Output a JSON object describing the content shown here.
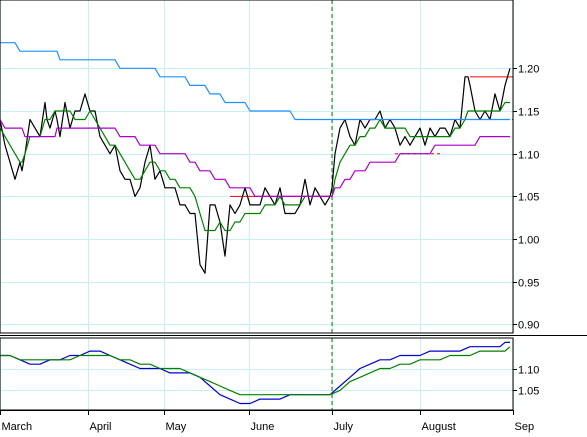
{
  "chart_data": [
    {
      "type": "line",
      "title": "",
      "xlabel": "",
      "ylabel": "",
      "x": [
        0,
        5,
        10,
        15,
        20,
        22,
        25,
        30,
        35,
        40,
        45,
        47,
        50,
        55,
        57,
        60,
        65,
        70,
        75,
        80,
        85,
        90,
        95,
        100,
        105,
        110,
        115,
        120,
        125,
        130,
        135,
        140,
        145,
        150,
        155,
        160,
        165,
        170,
        175,
        180,
        185,
        190,
        195,
        200,
        205,
        210,
        215,
        220,
        225,
        230,
        235,
        240,
        245,
        250,
        255,
        260,
        265,
        270,
        275,
        280,
        285,
        290,
        295,
        300,
        305,
        310,
        315,
        320,
        325,
        330,
        332,
        335,
        340,
        345,
        350,
        355,
        360,
        365,
        370,
        375,
        380,
        385,
        390,
        395,
        400,
        405,
        410,
        415,
        420,
        425,
        430,
        435,
        440,
        445,
        450,
        455,
        460,
        465,
        468,
        470,
        475,
        480,
        485,
        490,
        495,
        500,
        505,
        510
      ],
      "xlim": [
        0,
        513
      ],
      "ylim": [
        0.89,
        1.28
      ],
      "yticks": [
        "1.20",
        "1.15",
        "1.10",
        "1.05",
        "1.00",
        "0.95",
        "0.90"
      ],
      "xtick_labels": [
        "March",
        "April",
        "May",
        "June",
        "July",
        "August",
        "Sep"
      ],
      "xtick_positions": [
        0,
        88,
        164,
        249,
        332,
        420,
        513
      ],
      "series": [
        {
          "key": "price",
          "color": "#000000",
          "values": [
            1.14,
            1.11,
            1.09,
            1.07,
            1.09,
            1.08,
            1.1,
            1.14,
            1.13,
            1.12,
            1.16,
            1.14,
            1.13,
            1.15,
            1.14,
            1.12,
            1.16,
            1.13,
            1.15,
            1.15,
            1.17,
            1.15,
            1.15,
            1.12,
            1.11,
            1.1,
            1.11,
            1.08,
            1.07,
            1.07,
            1.05,
            1.06,
            1.09,
            1.11,
            1.07,
            1.08,
            1.06,
            1.06,
            1.06,
            1.04,
            1.04,
            1.03,
            1.03,
            0.97,
            0.96,
            1.04,
            1.04,
            1.02,
            0.98,
            1.04,
            1.03,
            1.04,
            1.06,
            1.04,
            1.04,
            1.04,
            1.06,
            1.05,
            1.04,
            1.06,
            1.03,
            1.03,
            1.03,
            1.04,
            1.07,
            1.04,
            1.06,
            1.05,
            1.04,
            1.05,
            1.06,
            1.1,
            1.13,
            1.14,
            1.12,
            1.11,
            1.14,
            1.13,
            1.14,
            1.14,
            1.15,
            1.13,
            1.14,
            1.13,
            1.11,
            1.12,
            1.11,
            1.12,
            1.13,
            1.11,
            1.13,
            1.12,
            1.13,
            1.13,
            1.12,
            1.14,
            1.13,
            1.19,
            1.19,
            1.18,
            1.15,
            1.14,
            1.15,
            1.14,
            1.17,
            1.15,
            1.18,
            1.2
          ]
        },
        {
          "key": "ma-short",
          "color": "#008000",
          "values": [
            1.13,
            1.12,
            1.11,
            1.1,
            1.09,
            1.09,
            1.1,
            1.12,
            1.12,
            1.12,
            1.14,
            1.14,
            1.14,
            1.15,
            1.15,
            1.15,
            1.15,
            1.15,
            1.14,
            1.14,
            1.14,
            1.15,
            1.14,
            1.13,
            1.12,
            1.11,
            1.11,
            1.1,
            1.09,
            1.08,
            1.07,
            1.07,
            1.08,
            1.09,
            1.09,
            1.08,
            1.08,
            1.07,
            1.07,
            1.06,
            1.06,
            1.06,
            1.05,
            1.03,
            1.01,
            1.01,
            1.01,
            1.02,
            1.01,
            1.01,
            1.02,
            1.02,
            1.03,
            1.03,
            1.03,
            1.03,
            1.04,
            1.04,
            1.04,
            1.05,
            1.04,
            1.04,
            1.04,
            1.04,
            1.05,
            1.05,
            1.05,
            1.05,
            1.05,
            1.05,
            1.05,
            1.07,
            1.09,
            1.1,
            1.11,
            1.11,
            1.12,
            1.12,
            1.13,
            1.13,
            1.14,
            1.13,
            1.13,
            1.13,
            1.13,
            1.13,
            1.12,
            1.12,
            1.12,
            1.12,
            1.12,
            1.12,
            1.12,
            1.12,
            1.12,
            1.13,
            1.13,
            1.14,
            1.15,
            1.15,
            1.15,
            1.15,
            1.15,
            1.15,
            1.15,
            1.15,
            1.16,
            1.16
          ]
        },
        {
          "key": "ma-medium",
          "color": "#aa00cc",
          "values": [
            1.14,
            1.13,
            1.13,
            1.13,
            1.13,
            1.13,
            1.12,
            1.12,
            1.12,
            1.12,
            1.12,
            1.12,
            1.12,
            1.12,
            1.13,
            1.13,
            1.13,
            1.13,
            1.13,
            1.13,
            1.13,
            1.13,
            1.13,
            1.13,
            1.13,
            1.13,
            1.13,
            1.12,
            1.12,
            1.12,
            1.12,
            1.11,
            1.11,
            1.11,
            1.11,
            1.1,
            1.1,
            1.1,
            1.1,
            1.1,
            1.1,
            1.09,
            1.09,
            1.08,
            1.08,
            1.08,
            1.07,
            1.07,
            1.07,
            1.06,
            1.06,
            1.06,
            1.06,
            1.06,
            1.05,
            1.05,
            1.05,
            1.05,
            1.05,
            1.05,
            1.05,
            1.05,
            1.05,
            1.05,
            1.05,
            1.05,
            1.05,
            1.05,
            1.05,
            1.05,
            1.05,
            1.06,
            1.06,
            1.07,
            1.07,
            1.08,
            1.08,
            1.08,
            1.09,
            1.09,
            1.09,
            1.09,
            1.09,
            1.09,
            1.1,
            1.1,
            1.1,
            1.1,
            1.1,
            1.1,
            1.1,
            1.11,
            1.11,
            1.11,
            1.11,
            1.11,
            1.11,
            1.11,
            1.11,
            1.11,
            1.11,
            1.12,
            1.12,
            1.12,
            1.12,
            1.12,
            1.12,
            1.12
          ]
        },
        {
          "key": "ma-long",
          "color": "#1e90ff",
          "values": [
            1.23,
            1.23,
            1.23,
            1.23,
            1.22,
            1.22,
            1.22,
            1.22,
            1.22,
            1.22,
            1.22,
            1.22,
            1.22,
            1.22,
            1.22,
            1.21,
            1.21,
            1.21,
            1.21,
            1.21,
            1.21,
            1.21,
            1.21,
            1.21,
            1.21,
            1.21,
            1.21,
            1.2,
            1.2,
            1.2,
            1.2,
            1.2,
            1.2,
            1.2,
            1.2,
            1.19,
            1.19,
            1.19,
            1.19,
            1.19,
            1.19,
            1.18,
            1.18,
            1.18,
            1.18,
            1.17,
            1.17,
            1.17,
            1.16,
            1.16,
            1.16,
            1.16,
            1.16,
            1.15,
            1.15,
            1.15,
            1.15,
            1.15,
            1.15,
            1.15,
            1.15,
            1.15,
            1.14,
            1.14,
            1.14,
            1.14,
            1.14,
            1.14,
            1.14,
            1.14,
            1.14,
            1.14,
            1.14,
            1.14,
            1.14,
            1.14,
            1.14,
            1.14,
            1.14,
            1.14,
            1.14,
            1.14,
            1.14,
            1.14,
            1.14,
            1.14,
            1.14,
            1.14,
            1.14,
            1.14,
            1.14,
            1.14,
            1.14,
            1.14,
            1.14,
            1.14,
            1.14,
            1.14,
            1.14,
            1.14,
            1.14,
            1.14,
            1.14,
            1.14,
            1.14,
            1.14,
            1.14,
            1.14
          ]
        }
      ],
      "annotations": [
        {
          "kind": "hline",
          "color": "#ff0000",
          "style": "solid",
          "x1": 230,
          "x2": 332,
          "y": 1.05
        },
        {
          "kind": "hline",
          "color": "#ff0000",
          "style": "solid",
          "x1": 470,
          "x2": 513,
          "y": 1.19
        },
        {
          "kind": "hline",
          "color": "#ff0000",
          "style": "dashed",
          "x1": 470,
          "x2": 513,
          "y": 1.14
        },
        {
          "kind": "hline",
          "color": "#ff0000",
          "style": "dashed",
          "x1": 395,
          "x2": 440,
          "y": 1.1
        },
        {
          "kind": "vline",
          "color": "#008000",
          "style": "dashed",
          "x": 332
        }
      ]
    },
    {
      "type": "line",
      "title": "",
      "xlabel": "",
      "ylabel": "",
      "x": [
        0,
        10,
        20,
        30,
        40,
        50,
        60,
        70,
        80,
        90,
        100,
        110,
        120,
        130,
        140,
        150,
        160,
        170,
        180,
        190,
        200,
        210,
        220,
        230,
        240,
        250,
        260,
        270,
        280,
        290,
        300,
        310,
        320,
        330,
        340,
        350,
        360,
        370,
        380,
        390,
        400,
        410,
        420,
        430,
        440,
        450,
        460,
        470,
        480,
        490,
        500,
        505,
        510
      ],
      "xlim": [
        0,
        513
      ],
      "ylim": [
        1.005,
        1.17
      ],
      "yticks": [
        "1.10",
        "1.05"
      ],
      "series": [
        {
          "key": "indicator-blue",
          "color": "#0000cc",
          "values": [
            1.13,
            1.13,
            1.12,
            1.11,
            1.11,
            1.12,
            1.12,
            1.13,
            1.13,
            1.14,
            1.14,
            1.13,
            1.12,
            1.11,
            1.1,
            1.1,
            1.1,
            1.09,
            1.09,
            1.09,
            1.08,
            1.06,
            1.04,
            1.03,
            1.02,
            1.02,
            1.03,
            1.03,
            1.03,
            1.04,
            1.04,
            1.04,
            1.04,
            1.04,
            1.06,
            1.08,
            1.1,
            1.11,
            1.12,
            1.12,
            1.13,
            1.13,
            1.13,
            1.14,
            1.14,
            1.14,
            1.14,
            1.15,
            1.15,
            1.15,
            1.15,
            1.16,
            1.16
          ]
        },
        {
          "key": "indicator-green",
          "color": "#008000",
          "values": [
            1.13,
            1.13,
            1.12,
            1.12,
            1.12,
            1.12,
            1.12,
            1.12,
            1.13,
            1.13,
            1.13,
            1.13,
            1.12,
            1.12,
            1.11,
            1.11,
            1.1,
            1.1,
            1.1,
            1.09,
            1.08,
            1.07,
            1.06,
            1.05,
            1.04,
            1.04,
            1.04,
            1.04,
            1.04,
            1.04,
            1.04,
            1.04,
            1.04,
            1.04,
            1.05,
            1.07,
            1.08,
            1.09,
            1.1,
            1.1,
            1.11,
            1.11,
            1.12,
            1.12,
            1.12,
            1.13,
            1.13,
            1.13,
            1.14,
            1.14,
            1.14,
            1.14,
            1.15
          ]
        }
      ],
      "annotations": [
        {
          "kind": "vline",
          "color": "#008000",
          "style": "dashed",
          "x": 332
        }
      ]
    }
  ]
}
